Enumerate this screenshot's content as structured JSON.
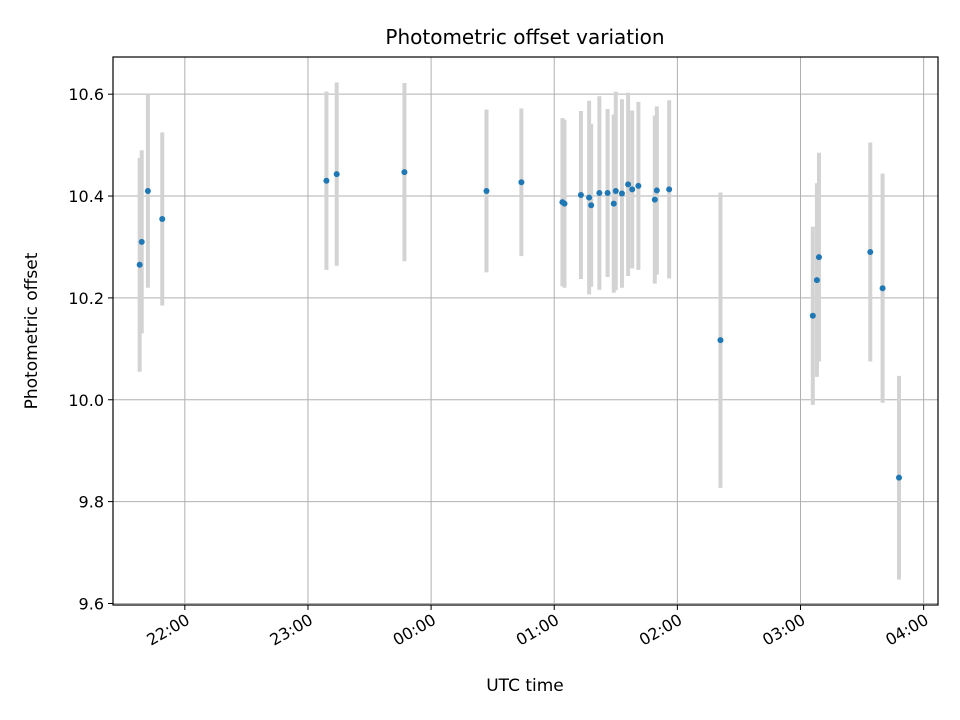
{
  "chart_data": {
    "type": "scatter",
    "title": "Photometric offset variation",
    "xlabel": "UTC time",
    "ylabel": "Photometric offset",
    "xlim": [
      "21:25",
      "04:07"
    ],
    "ylim": [
      9.597,
      10.673
    ],
    "x_ticks": [
      "22:00",
      "23:00",
      "00:00",
      "01:00",
      "02:00",
      "03:00",
      "04:00"
    ],
    "y_ticks": [
      "9.6",
      "9.8",
      "10.0",
      "10.2",
      "10.4",
      "10.6"
    ],
    "grid": true,
    "colors": {
      "point": "#1f77b4",
      "errorbar": "#d3d3d3",
      "grid": "#b0b0b0"
    },
    "points": [
      {
        "time": "21:38",
        "y": 10.265,
        "err": 0.21
      },
      {
        "time": "21:39",
        "y": 10.31,
        "err": 0.18
      },
      {
        "time": "21:42",
        "y": 10.41,
        "err": 0.19
      },
      {
        "time": "21:49",
        "y": 10.355,
        "err": 0.17
      },
      {
        "time": "23:09",
        "y": 10.43,
        "err": 0.175
      },
      {
        "time": "23:14",
        "y": 10.443,
        "err": 0.18
      },
      {
        "time": "23:47",
        "y": 10.447,
        "err": 0.175
      },
      {
        "time": "00:27",
        "y": 10.41,
        "err": 0.16
      },
      {
        "time": "00:44",
        "y": 10.427,
        "err": 0.145
      },
      {
        "time": "01:04",
        "y": 10.388,
        "err": 0.165
      },
      {
        "time": "01:05",
        "y": 10.385,
        "err": 0.165
      },
      {
        "time": "01:13",
        "y": 10.402,
        "err": 0.165
      },
      {
        "time": "01:17",
        "y": 10.397,
        "err": 0.19
      },
      {
        "time": "01:18",
        "y": 10.382,
        "err": 0.16
      },
      {
        "time": "01:22",
        "y": 10.406,
        "err": 0.19
      },
      {
        "time": "01:26",
        "y": 10.406,
        "err": 0.165
      },
      {
        "time": "01:29",
        "y": 10.385,
        "err": 0.175
      },
      {
        "time": "01:30",
        "y": 10.41,
        "err": 0.195
      },
      {
        "time": "01:33",
        "y": 10.405,
        "err": 0.185
      },
      {
        "time": "01:36",
        "y": 10.423,
        "err": 0.18
      },
      {
        "time": "01:38",
        "y": 10.413,
        "err": 0.155
      },
      {
        "time": "01:41",
        "y": 10.42,
        "err": 0.165
      },
      {
        "time": "01:49",
        "y": 10.393,
        "err": 0.165
      },
      {
        "time": "01:50",
        "y": 10.411,
        "err": 0.165
      },
      {
        "time": "01:56",
        "y": 10.413,
        "err": 0.175
      },
      {
        "time": "02:21",
        "y": 10.117,
        "err": 0.29
      },
      {
        "time": "03:06",
        "y": 10.165,
        "err": 0.175
      },
      {
        "time": "03:08",
        "y": 10.235,
        "err": 0.19
      },
      {
        "time": "03:09",
        "y": 10.28,
        "err": 0.205
      },
      {
        "time": "03:34",
        "y": 10.29,
        "err": 0.215
      },
      {
        "time": "03:40",
        "y": 10.219,
        "err": 0.225
      },
      {
        "time": "03:48",
        "y": 9.847,
        "err": 0.2
      }
    ]
  }
}
